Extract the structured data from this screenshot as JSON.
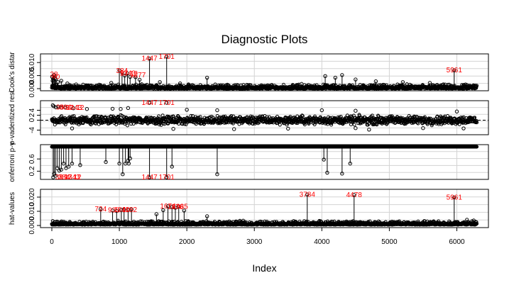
{
  "chart_data": {
    "type": "scatter",
    "title": "Diagnostic Plots",
    "xlabel": "Index",
    "xlim": [
      0,
      6300
    ],
    "x_ticks": [
      "0",
      "1000",
      "2000",
      "3000",
      "4000",
      "5000",
      "6000"
    ],
    "n_obs": 6300,
    "panels": [
      {
        "name": "cooks",
        "ylabel": "Cook's distar",
        "ylim": [
          0,
          0.0125
        ],
        "y_ticks": [
          {
            "v": 0.0,
            "label": "0.000"
          },
          {
            "v": 0.005,
            "label": "0.005"
          },
          {
            "v": 0.01,
            "label": "0.010"
          }
        ],
        "baseline": 0,
        "stems": true,
        "points": [
          [
            5,
            0.0045
          ],
          [
            12,
            0.003
          ],
          [
            20,
            0.0038
          ],
          [
            35,
            0.0052
          ],
          [
            48,
            0.004
          ],
          [
            60,
            0.0036
          ],
          [
            90,
            0.0025
          ],
          [
            140,
            0.003
          ],
          [
            230,
            0.002
          ],
          [
            360,
            0.0016
          ],
          [
            520,
            0.0012
          ],
          [
            700,
            0.0015
          ],
          [
            880,
            0.0022
          ],
          [
            1000,
            0.007
          ],
          [
            1040,
            0.0062
          ],
          [
            1080,
            0.005
          ],
          [
            1120,
            0.0058
          ],
          [
            1160,
            0.0045
          ],
          [
            1240,
            0.0044
          ],
          [
            1300,
            0.0034
          ],
          [
            1447,
            0.0115
          ],
          [
            1600,
            0.0025
          ],
          [
            1701,
            0.0122
          ],
          [
            1900,
            0.002
          ],
          [
            2300,
            0.0042
          ],
          [
            2600,
            0.0015
          ],
          [
            3200,
            0.0012
          ],
          [
            3700,
            0.0018
          ],
          [
            4050,
            0.0048
          ],
          [
            4200,
            0.0042
          ],
          [
            4300,
            0.0052
          ],
          [
            4500,
            0.0035
          ],
          [
            4800,
            0.0028
          ],
          [
            5200,
            0.0025
          ],
          [
            5600,
            0.0022
          ],
          [
            5961,
            0.007
          ],
          [
            6150,
            0.0014
          ],
          [
            6250,
            0.0012
          ]
        ],
        "labels": [
          {
            "x": 32,
            "y": 0.0055,
            "text": "38"
          },
          {
            "x": 60,
            "y": 0.0045,
            "text": "40"
          },
          {
            "x": 1040,
            "y": 0.0068,
            "text": "384"
          },
          {
            "x": 1070,
            "y": 0.0059,
            "text": "97"
          },
          {
            "x": 1125,
            "y": 0.0059,
            "text": "1343"
          },
          {
            "x": 1215,
            "y": 0.0057,
            "text": "12"
          },
          {
            "x": 1275,
            "y": 0.0051,
            "text": "1277"
          },
          {
            "x": 1447,
            "y": 0.0115,
            "text": "1447"
          },
          {
            "x": 1701,
            "y": 0.0122,
            "text": "1701"
          },
          {
            "x": 5961,
            "y": 0.007,
            "text": "5961"
          }
        ]
      },
      {
        "name": "studentized",
        "ylabel": "p-vadentized resi",
        "ylim": [
          -5,
          7
        ],
        "y_ticks": [
          {
            "v": -4,
            "label": "-4"
          },
          {
            "v": 0,
            "label": "0"
          },
          {
            "v": 2,
            "label": "2"
          },
          {
            "v": 4,
            "label": "4"
          }
        ],
        "reference_line": 0,
        "stems": false,
        "points": [
          [
            15,
            6.0
          ],
          [
            30,
            5.6
          ],
          [
            60,
            5.2
          ],
          [
            95,
            5.4
          ],
          [
            140,
            5.1
          ],
          [
            200,
            5.2
          ],
          [
            320,
            4.8
          ],
          [
            520,
            4.5
          ],
          [
            900,
            4.6
          ],
          [
            1020,
            4.5
          ],
          [
            1130,
            4.9
          ],
          [
            1447,
            7.0
          ],
          [
            1701,
            7.0
          ],
          [
            2000,
            4.2
          ],
          [
            2450,
            4.0
          ],
          [
            4000,
            4.0
          ],
          [
            4500,
            3.8
          ],
          [
            6000,
            3.5
          ],
          [
            300,
            -3.3
          ],
          [
            1800,
            -3.5
          ],
          [
            2700,
            -3.6
          ],
          [
            3500,
            -3.4
          ],
          [
            4500,
            -3.2
          ],
          [
            4700,
            -3.8
          ],
          [
            5500,
            -3.2
          ],
          [
            6100,
            -3.3
          ]
        ],
        "labels": [
          {
            "x": 120,
            "y": 5.2,
            "text": "38"
          },
          {
            "x": 200,
            "y": 5.1,
            "text": "384"
          },
          {
            "x": 260,
            "y": 5.0,
            "text": "97"
          },
          {
            "x": 330,
            "y": 5.0,
            "text": "1343"
          },
          {
            "x": 420,
            "y": 5.0,
            "text": "12"
          },
          {
            "x": 1447,
            "y": 7.0,
            "text": "1447"
          },
          {
            "x": 1701,
            "y": 7.0,
            "text": "1701"
          }
        ]
      },
      {
        "name": "bonferroni",
        "ylabel": "onferroni p-v",
        "ylim": [
          0,
          1.0
        ],
        "y_ticks": [
          {
            "v": 0.2,
            "label": "0.2"
          },
          {
            "v": 0.6,
            "label": "0.6"
          }
        ],
        "top": 1,
        "stems": true,
        "points": [
          [
            20,
            0.0
          ],
          [
            35,
            0.12
          ],
          [
            55,
            0.05
          ],
          [
            80,
            0.3
          ],
          [
            110,
            0.22
          ],
          [
            140,
            0.25
          ],
          [
            175,
            0.45
          ],
          [
            210,
            0.3
          ],
          [
            250,
            0.35
          ],
          [
            300,
            0.45
          ],
          [
            420,
            0.4
          ],
          [
            800,
            0.5
          ],
          [
            1000,
            0.45
          ],
          [
            1050,
            0.1
          ],
          [
            1090,
            0.45
          ],
          [
            1130,
            0.55
          ],
          [
            1140,
            0.45
          ],
          [
            1160,
            0.62
          ],
          [
            1447,
            0.0
          ],
          [
            1701,
            0.0
          ],
          [
            1780,
            0.35
          ],
          [
            2450,
            0.1
          ],
          [
            4030,
            0.58
          ],
          [
            4080,
            0.15
          ],
          [
            4300,
            0.12
          ],
          [
            4420,
            0.45
          ]
        ],
        "labels": [
          {
            "x": 110,
            "y": 0.0,
            "text": "38"
          },
          {
            "x": 180,
            "y": 0.0,
            "text": "384"
          },
          {
            "x": 240,
            "y": 0.0,
            "text": "97"
          },
          {
            "x": 300,
            "y": 0.0,
            "text": "1343"
          },
          {
            "x": 380,
            "y": 0.0,
            "text": "12"
          },
          {
            "x": 1447,
            "y": 0.0,
            "text": "1447"
          },
          {
            "x": 1701,
            "y": 0.0,
            "text": "1701"
          }
        ]
      },
      {
        "name": "hat",
        "ylabel": "hat-values",
        "ylim": [
          0,
          0.024
        ],
        "y_ticks": [
          {
            "v": 0.0,
            "label": "0.000"
          },
          {
            "v": 0.01,
            "label": "0.010"
          },
          {
            "v": 0.02,
            "label": "0.020"
          }
        ],
        "baseline": 0,
        "stems": true,
        "points": [
          [
            724,
            0.0115
          ],
          [
            900,
            0.0105
          ],
          [
            960,
            0.0102
          ],
          [
            1030,
            0.011
          ],
          [
            1070,
            0.0112
          ],
          [
            1130,
            0.0108
          ],
          [
            1180,
            0.0113
          ],
          [
            1550,
            0.008
          ],
          [
            1650,
            0.0108
          ],
          [
            1720,
            0.0135
          ],
          [
            1780,
            0.013
          ],
          [
            1830,
            0.0125
          ],
          [
            1880,
            0.0132
          ],
          [
            1960,
            0.0105
          ],
          [
            2300,
            0.0065
          ],
          [
            3784,
            0.0218
          ],
          [
            4478,
            0.0215
          ],
          [
            5961,
            0.0198
          ],
          [
            6150,
            0.004
          ],
          [
            6250,
            0.0035
          ]
        ],
        "labels": [
          {
            "x": 724,
            "y": 0.0115,
            "text": "724"
          },
          {
            "x": 920,
            "y": 0.0108,
            "text": "933"
          },
          {
            "x": 1040,
            "y": 0.011,
            "text": "1040"
          },
          {
            "x": 1150,
            "y": 0.011,
            "text": "1182"
          },
          {
            "x": 1720,
            "y": 0.0135,
            "text": "1674"
          },
          {
            "x": 1830,
            "y": 0.013,
            "text": "1876"
          },
          {
            "x": 1900,
            "y": 0.0132,
            "text": "1985"
          },
          {
            "x": 3784,
            "y": 0.0218,
            "text": "3784"
          },
          {
            "x": 4478,
            "y": 0.0215,
            "text": "4478"
          },
          {
            "x": 5961,
            "y": 0.0198,
            "text": "5961"
          }
        ]
      }
    ]
  }
}
